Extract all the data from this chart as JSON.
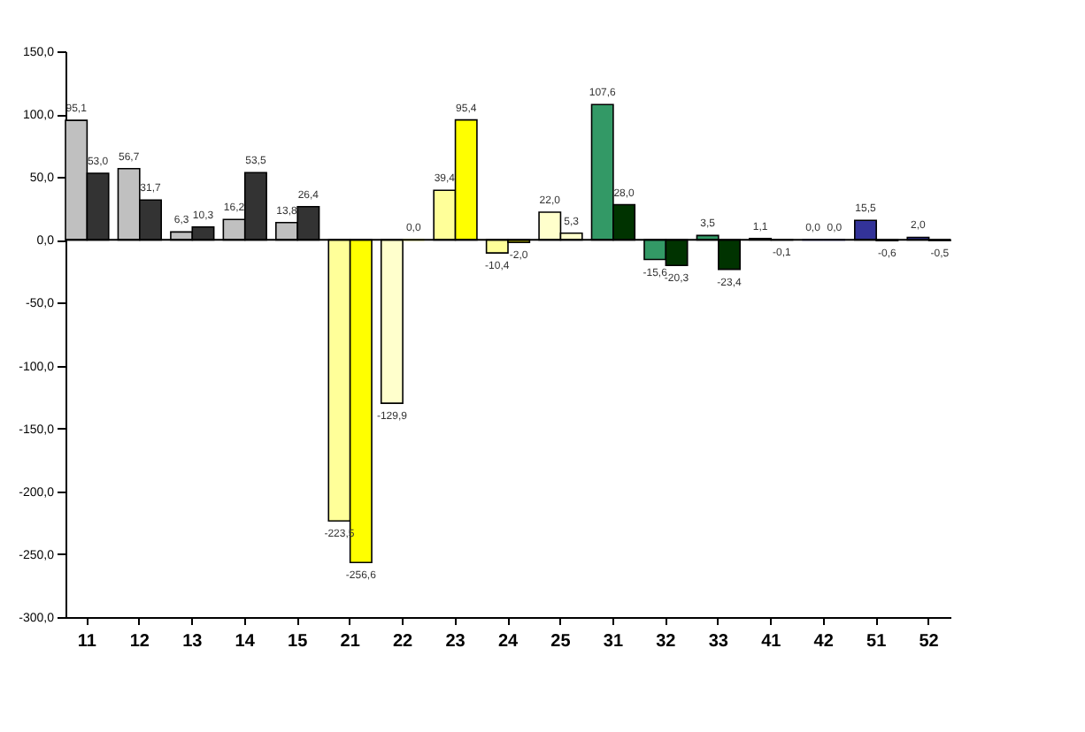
{
  "chart_data": {
    "type": "bar",
    "categories": [
      "11",
      "12",
      "13",
      "14",
      "15",
      "21",
      "22",
      "23",
      "24",
      "25",
      "31",
      "32",
      "33",
      "41",
      "42",
      "51",
      "52"
    ],
    "series": [
      {
        "values": [
          95.1,
          56.7,
          6.3,
          16.2,
          13.8,
          -223.5,
          -129.9,
          39.4,
          -10.4,
          22.0,
          107.6,
          -15.6,
          3.5,
          1.1,
          0.0,
          15.5,
          2.0
        ],
        "colors": [
          "#c0c0c0",
          "#c0c0c0",
          "#c0c0c0",
          "#c0c0c0",
          "#c0c0c0",
          "#ffff99",
          "#ffffcc",
          "#ffff99",
          "#ffff99",
          "#ffffcc",
          "#339966",
          "#339966",
          "#339966",
          "#003300",
          "#333399",
          "#333399",
          "#333399"
        ],
        "value_labels": [
          "95,1",
          "56,7",
          "6,3",
          "16,2",
          "13,8",
          "-223,5",
          "-129,9",
          "39,4",
          "-10,4",
          "22,0",
          "107,6",
          "-15,6",
          "3,5",
          "1,1",
          "0,0",
          "15,5",
          "2,0"
        ]
      },
      {
        "values": [
          53.0,
          31.7,
          10.3,
          53.5,
          26.4,
          -256.6,
          0.0,
          95.4,
          -2.0,
          5.3,
          28.0,
          -20.3,
          -23.4,
          -0.1,
          0.0,
          -0.6,
          -0.5
        ],
        "colors": [
          "#333333",
          "#333333",
          "#333333",
          "#333333",
          "#333333",
          "#ffff00",
          "#ffff00",
          "#ffff00",
          "#999900",
          "#ffffcc",
          "#003300",
          "#003300",
          "#003300",
          "#003300",
          "#333399",
          "#333399",
          "#333399"
        ],
        "value_labels": [
          "53,0",
          "31,7",
          "10,3",
          "53,5",
          "26,4",
          "-256,6",
          "0,0",
          "95,4",
          "-2,0",
          "5,3",
          "28,0",
          "-20,3",
          "-23,4",
          "-0,1",
          "0,0",
          "-0,6",
          "-0,5"
        ]
      }
    ],
    "ylim": [
      -300,
      150
    ],
    "yticks": [
      {
        "value": -300,
        "label": "-300,0"
      },
      {
        "value": -250,
        "label": "-250,0"
      },
      {
        "value": -200,
        "label": "-200,0"
      },
      {
        "value": -150,
        "label": "-150,0"
      },
      {
        "value": -100,
        "label": "-100,0"
      },
      {
        "value": -50,
        "label": "-50,0"
      },
      {
        "value": 0,
        "label": "0,0"
      },
      {
        "value": 50,
        "label": "50,0"
      },
      {
        "value": 100,
        "label": "100,0"
      },
      {
        "value": 150,
        "label": "150,0"
      }
    ]
  }
}
